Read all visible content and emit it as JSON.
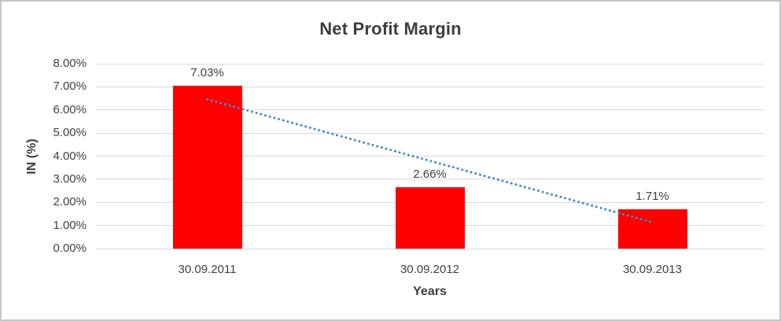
{
  "chart_data": {
    "type": "bar",
    "title": "Net Profit Margin",
    "xlabel": "Years",
    "ylabel": "IN (%)",
    "categories": [
      "30.09.2011",
      "30.09.2012",
      "30.09.2013"
    ],
    "values": [
      7.03,
      2.66,
      1.71
    ],
    "value_labels": [
      "7.03%",
      "2.66%",
      "1.71%"
    ],
    "ylim": [
      0,
      8
    ],
    "grid": true,
    "legend": "none",
    "yticks": [
      {
        "v": 0,
        "label": "0.00%"
      },
      {
        "v": 1,
        "label": "1.00%"
      },
      {
        "v": 2,
        "label": "2.00%"
      },
      {
        "v": 3,
        "label": "3.00%"
      },
      {
        "v": 4,
        "label": "4.00%"
      },
      {
        "v": 5,
        "label": "5.00%"
      },
      {
        "v": 6,
        "label": "6.00%"
      },
      {
        "v": 7,
        "label": "7.00%"
      },
      {
        "v": 8,
        "label": "8.00%"
      }
    ],
    "bar_color": "#FF0000",
    "gridline_color": "#D9D9D9",
    "text_color": "#404040",
    "trendline": {
      "type": "linear",
      "style": "dotted",
      "color": "#4A87C8",
      "start_value": 6.46,
      "end_value": 1.14
    }
  }
}
